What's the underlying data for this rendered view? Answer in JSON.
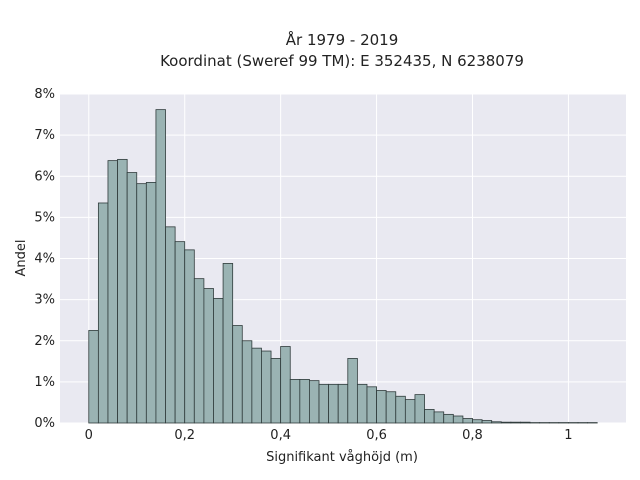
{
  "chart_data": {
    "type": "bar",
    "title": "År 1979 - 2019",
    "subtitle": "Koordinat (Sweref 99 TM): E 352435, N 6238079",
    "xlabel": "Signifikant våghöjd (m)",
    "ylabel": "Andel",
    "xlim": [
      -0.06,
      1.12
    ],
    "ylim": [
      0,
      8
    ],
    "xticks": [
      {
        "value": 0,
        "label": "0"
      },
      {
        "value": 0.2,
        "label": "0,2"
      },
      {
        "value": 0.4,
        "label": "0,4"
      },
      {
        "value": 0.6,
        "label": "0,6"
      },
      {
        "value": 0.8,
        "label": "0,8"
      },
      {
        "value": 1.0,
        "label": "1"
      }
    ],
    "yticks": [
      {
        "value": 0,
        "label": "0%"
      },
      {
        "value": 1,
        "label": "1%"
      },
      {
        "value": 2,
        "label": "2%"
      },
      {
        "value": 3,
        "label": "3%"
      },
      {
        "value": 4,
        "label": "4%"
      },
      {
        "value": 5,
        "label": "5%"
      },
      {
        "value": 6,
        "label": "6%"
      },
      {
        "value": 7,
        "label": "7%"
      },
      {
        "value": 8,
        "label": "8%"
      }
    ],
    "grid": true,
    "bin_edges": [
      0,
      0.02,
      0.04,
      0.06,
      0.08,
      0.1,
      0.12,
      0.14,
      0.16,
      0.18,
      0.2,
      0.22,
      0.24,
      0.26,
      0.28,
      0.3,
      0.32,
      0.34,
      0.36,
      0.38,
      0.4,
      0.42,
      0.44,
      0.46,
      0.48,
      0.5,
      0.52,
      0.54,
      0.56,
      0.58,
      0.6,
      0.62,
      0.64,
      0.66,
      0.68,
      0.7,
      0.72,
      0.74,
      0.76,
      0.78,
      0.8,
      0.82,
      0.84,
      0.86,
      0.88,
      0.9,
      0.92,
      0.94,
      0.96,
      0.98,
      1.0,
      1.02,
      1.04,
      1.06
    ],
    "values": [
      2.25,
      5.35,
      6.38,
      6.41,
      6.09,
      5.82,
      5.85,
      7.62,
      4.77,
      4.41,
      4.21,
      3.51,
      3.27,
      3.03,
      3.88,
      2.37,
      2.0,
      1.82,
      1.75,
      1.57,
      1.86,
      1.06,
      1.06,
      1.03,
      0.94,
      0.94,
      0.94,
      1.57,
      0.94,
      0.88,
      0.79,
      0.76,
      0.65,
      0.57,
      0.69,
      0.33,
      0.27,
      0.21,
      0.17,
      0.11,
      0.08,
      0.06,
      0.03,
      0.02,
      0.02,
      0.02,
      0.01,
      0.01,
      0.01,
      0.01,
      0.01,
      0.01,
      0.01
    ],
    "colors": {
      "bar_fill": "#9ab3b3",
      "bar_edge": "#2f3b3b",
      "plot_bg": "#e9e9f1",
      "grid": "#ffffff"
    }
  }
}
